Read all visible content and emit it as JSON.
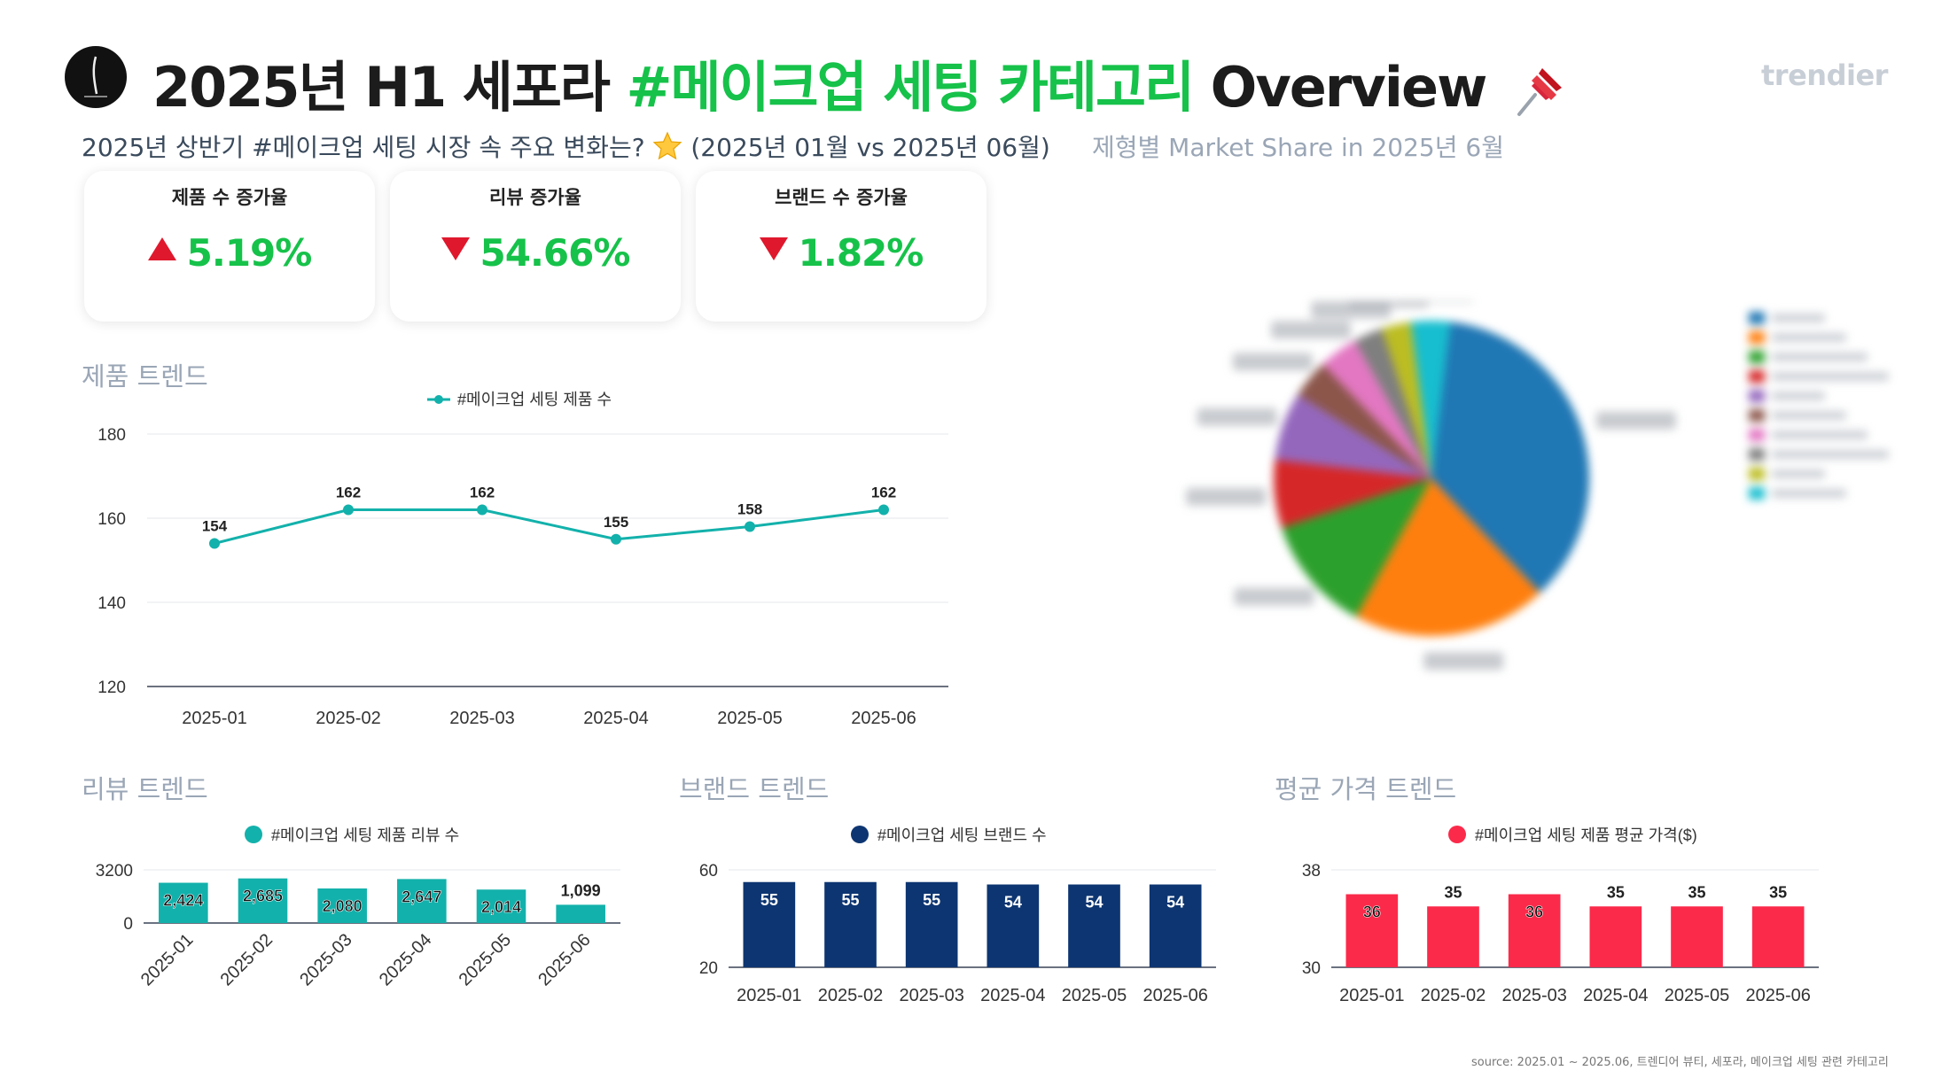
{
  "header": {
    "title_prefix": "2025년 H1 세포라 ",
    "title_highlight": "#메이크업 세팅 카테고리",
    "title_suffix": " Overview",
    "pin_icon": "pushpin-icon",
    "brand": "trendier"
  },
  "subtitle": {
    "text_before": "2025년 상반기 #메이크업 세팅 시장 속 주요 변화는?",
    "star_icon": "star-icon",
    "text_after": " (2025년 01월 vs 2025년 06월)"
  },
  "kpis": [
    {
      "label": "제품 수 증가율",
      "value": "5.19%",
      "direction": "up"
    },
    {
      "label": "리뷰 증가율",
      "value": "54.66%",
      "direction": "down"
    },
    {
      "label": "브랜드 수 증가율",
      "value": "1.82%",
      "direction": "down"
    }
  ],
  "colors": {
    "highlight": "#16c24a",
    "product_line": "#13b1ab",
    "review_bar": "#13b1ab",
    "brand_bar": "#0d3571",
    "price_bar": "#fb2a4a",
    "triangle": "#e0182d"
  },
  "sections": {
    "product_trend": "제품 트렌드",
    "review_trend": "리뷰 트렌드",
    "brand_trend": "브랜드 트렌드",
    "price_trend": "평균 가격 트렌드",
    "pie_title": "제형별 Market Share in 2025년 6월"
  },
  "chart_data": [
    {
      "type": "line",
      "categories": [
        "2025-01",
        "2025-02",
        "2025-03",
        "2025-04",
        "2025-05",
        "2025-06"
      ],
      "series": [
        {
          "name": "#메이크업 세팅 제품 수",
          "values": [
            154,
            162,
            162,
            155,
            158,
            162
          ]
        }
      ],
      "ylim": [
        120,
        180
      ],
      "yticks": [
        120,
        140,
        160,
        180
      ],
      "grid": true,
      "legend": "top-center"
    },
    {
      "type": "bar",
      "categories": [
        "2025-01",
        "2025-02",
        "2025-03",
        "2025-04",
        "2025-05",
        "2025-06"
      ],
      "series": [
        {
          "name": "#메이크업 세팅 제품 리뷰 수",
          "values": [
            2424,
            2685,
            2080,
            2647,
            2014,
            1099
          ]
        }
      ],
      "value_labels": [
        "2,424",
        "2,685",
        "2,080",
        "2,647",
        "2,014",
        "1,099"
      ],
      "ylim": [
        0,
        3200
      ],
      "yticks": [
        0,
        3200
      ],
      "legend": "top-center"
    },
    {
      "type": "bar",
      "categories": [
        "2025-01",
        "2025-02",
        "2025-03",
        "2025-04",
        "2025-05",
        "2025-06"
      ],
      "series": [
        {
          "name": "#메이크업 세팅 브랜드 수",
          "values": [
            55,
            55,
            55,
            54,
            54,
            54
          ]
        }
      ],
      "ylim": [
        20,
        60
      ],
      "yticks": [
        20,
        60
      ],
      "legend": "top-center"
    },
    {
      "type": "bar",
      "categories": [
        "2025-01",
        "2025-02",
        "2025-03",
        "2025-04",
        "2025-05",
        "2025-06"
      ],
      "series": [
        {
          "name": "#메이크업 세팅 제품 평균 가격($)",
          "values": [
            36,
            35,
            36,
            35,
            35,
            35
          ]
        }
      ],
      "ylim": [
        30,
        38
      ],
      "yticks": [
        30,
        38
      ],
      "legend": "top-center"
    },
    {
      "type": "pie",
      "blurred": true,
      "slice_percentages": [
        36,
        20,
        12,
        7,
        7,
        4,
        4,
        3,
        3,
        4
      ],
      "colors": [
        "#1f77b4",
        "#ff7f0e",
        "#2ca02c",
        "#d62728",
        "#9467bd",
        "#8c564b",
        "#e377c2",
        "#7f7f7f",
        "#bcbd22",
        "#17becf"
      ],
      "legend": "right"
    }
  ],
  "footer": "source: 2025.01 ~ 2025.06, 트렌디어 뷰티, 세포라, 메이크업 세팅 관련 카테고리"
}
